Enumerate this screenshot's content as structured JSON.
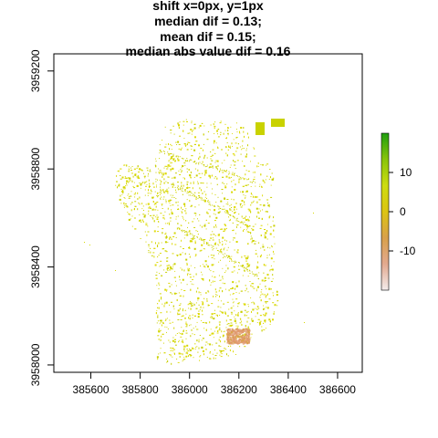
{
  "chart_data": {
    "type": "heatmap",
    "title_lines": [
      "shift x=0px, y=1px",
      "median dif = 0.13;",
      "mean dif = 0.15;",
      "median abs value dif = 0.16"
    ],
    "xlim": [
      385450,
      386700
    ],
    "ylim": [
      3957970,
      3959270
    ],
    "x_ticks": [
      385600,
      385800,
      386000,
      386200,
      386400,
      386600
    ],
    "y_ticks": [
      3958000,
      3958400,
      3958800,
      3959200
    ],
    "x_tick_labels": [
      "385600",
      "385800",
      "386000",
      "386200",
      "386400",
      "386600"
    ],
    "y_tick_labels": [
      "3958000",
      "3958400",
      "3958800",
      "3959200"
    ],
    "colorbar": {
      "range": [
        -20,
        20
      ],
      "ticks": [
        10,
        0,
        -10
      ],
      "tick_labels": [
        "10",
        "0",
        "-10"
      ],
      "colors": [
        "#f3ecec",
        "#e2a98f",
        "#d8a04a",
        "#dcc413",
        "#cddc10",
        "#89c40a",
        "#1f9e10"
      ]
    },
    "dominant_value": 0,
    "dominant_color": "#d7d800",
    "high_value_patch": {
      "x": [
        386270,
        386390
      ],
      "y": [
        3958920,
        3958960
      ],
      "value": 2,
      "color": "#c9d200"
    },
    "negative_patch": {
      "x": [
        386150,
        386240
      ],
      "y": [
        3958090,
        3958150
      ],
      "value": -10,
      "color": "#e0a07a"
    }
  }
}
